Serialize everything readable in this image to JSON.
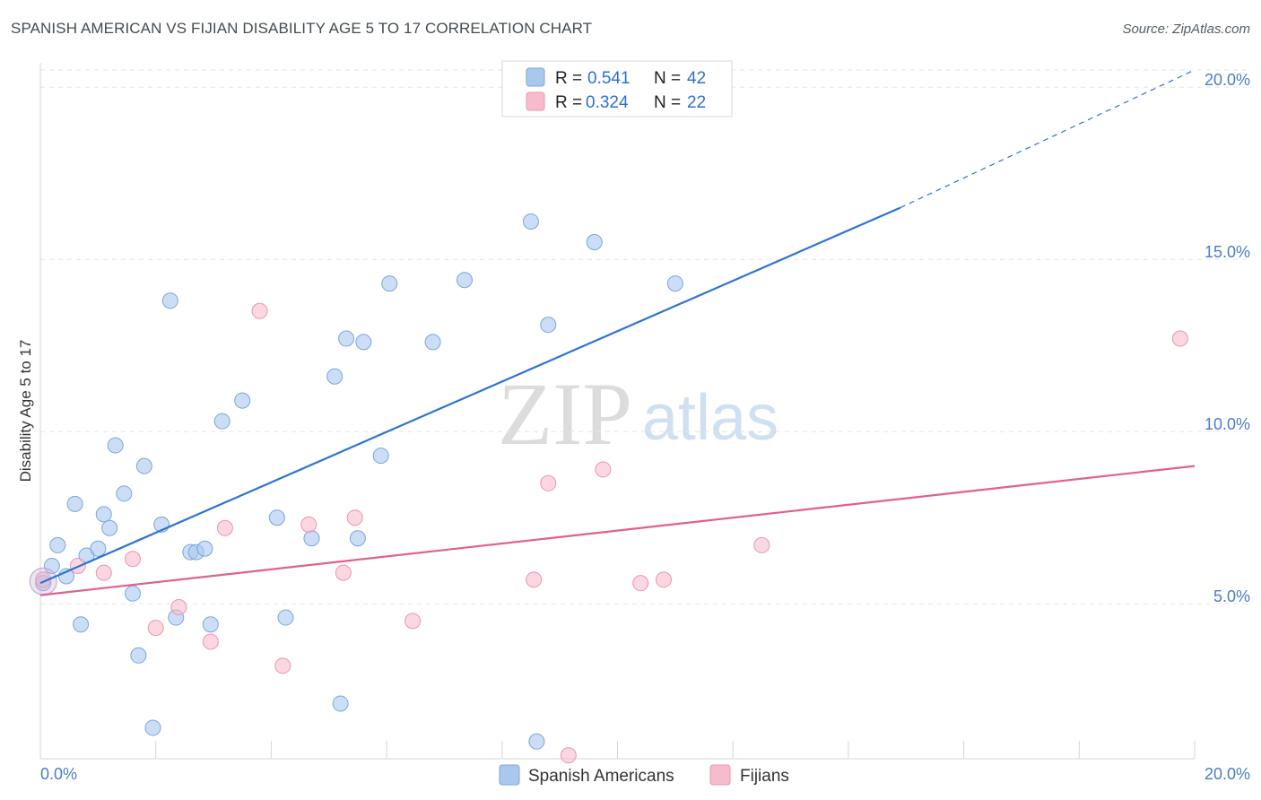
{
  "header": {
    "title": "SPANISH AMERICAN VS FIJIAN DISABILITY AGE 5 TO 17 CORRELATION CHART",
    "source": "Source: ZipAtlas.com"
  },
  "watermark": {
    "zip": "ZIP",
    "atlas": "atlas"
  },
  "chart_data": {
    "type": "scatter",
    "title": "SPANISH AMERICAN VS FIJIAN DISABILITY AGE 5 TO 17 CORRELATION CHART",
    "xlabel": "",
    "ylabel": "Disability Age 5 to 17",
    "xlim": [
      0,
      20
    ],
    "ylim": [
      0.5,
      20.5
    ],
    "x_tick_labels": {
      "min": "0.0%",
      "max": "20.0%"
    },
    "y_ticks": [
      {
        "value": 5,
        "label": "5.0%"
      },
      {
        "value": 10,
        "label": "10.0%"
      },
      {
        "value": 15,
        "label": "15.0%"
      },
      {
        "value": 20,
        "label": "20.0%"
      }
    ],
    "grid": true,
    "legend_position": "top-center",
    "stats": [
      {
        "r_label": "R = ",
        "r_value": "0.541",
        "n_label": "N = ",
        "n_value": "42"
      },
      {
        "r_label": "R = ",
        "r_value": "0.324",
        "n_label": "N = ",
        "n_value": "22"
      }
    ],
    "series": [
      {
        "name": "Spanish Americans",
        "color": "#aac8ee",
        "edge": "#7aa6dc",
        "line_color": "#2d74d1",
        "trend": {
          "x0": 0,
          "y0": 5.6,
          "x1": 14.9,
          "y1": 16.5,
          "dash_to_x": 20,
          "dash_to_y": 20.5
        },
        "points": [
          [
            0.05,
            5.6
          ],
          [
            0.2,
            6.1
          ],
          [
            0.3,
            6.7
          ],
          [
            0.45,
            5.8
          ],
          [
            0.6,
            7.9
          ],
          [
            0.7,
            4.4
          ],
          [
            0.8,
            6.4
          ],
          [
            1.0,
            6.6
          ],
          [
            1.1,
            7.6
          ],
          [
            1.2,
            7.2
          ],
          [
            1.3,
            9.6
          ],
          [
            1.45,
            8.2
          ],
          [
            1.6,
            5.3
          ],
          [
            1.7,
            3.5
          ],
          [
            1.8,
            9.0
          ],
          [
            1.95,
            1.4
          ],
          [
            2.1,
            7.3
          ],
          [
            2.25,
            13.8
          ],
          [
            2.35,
            4.6
          ],
          [
            2.6,
            6.5
          ],
          [
            2.7,
            6.5
          ],
          [
            2.85,
            6.6
          ],
          [
            2.95,
            4.4
          ],
          [
            3.15,
            10.3
          ],
          [
            3.5,
            10.9
          ],
          [
            4.1,
            7.5
          ],
          [
            4.25,
            4.6
          ],
          [
            4.7,
            6.9
          ],
          [
            5.1,
            11.6
          ],
          [
            5.2,
            2.1
          ],
          [
            5.3,
            12.7
          ],
          [
            5.5,
            6.9
          ],
          [
            5.6,
            12.6
          ],
          [
            5.9,
            9.3
          ],
          [
            6.05,
            14.3
          ],
          [
            6.8,
            12.6
          ],
          [
            7.35,
            14.4
          ],
          [
            8.5,
            16.1
          ],
          [
            8.6,
            1.0
          ],
          [
            8.8,
            13.1
          ],
          [
            9.6,
            15.5
          ],
          [
            11.0,
            14.3
          ]
        ]
      },
      {
        "name": "Fijians",
        "color": "#f6bccd",
        "edge": "#ee95ae",
        "line_color": "#e0608c",
        "trend": {
          "x0": 0,
          "y0": 5.25,
          "x1": 20,
          "y1": 9.0
        },
        "points": [
          [
            0.05,
            5.7
          ],
          [
            0.65,
            6.1
          ],
          [
            1.1,
            5.9
          ],
          [
            1.6,
            6.3
          ],
          [
            2.0,
            4.3
          ],
          [
            2.4,
            4.9
          ],
          [
            2.95,
            3.9
          ],
          [
            3.2,
            7.2
          ],
          [
            3.8,
            13.5
          ],
          [
            4.2,
            3.2
          ],
          [
            4.65,
            7.3
          ],
          [
            5.25,
            5.9
          ],
          [
            5.45,
            7.5
          ],
          [
            6.45,
            4.5
          ],
          [
            8.55,
            5.7
          ],
          [
            8.8,
            8.5
          ],
          [
            9.15,
            0.6
          ],
          [
            9.75,
            8.9
          ],
          [
            10.4,
            5.6
          ],
          [
            10.8,
            5.7
          ],
          [
            12.5,
            6.7
          ],
          [
            19.75,
            12.7
          ]
        ]
      }
    ]
  }
}
